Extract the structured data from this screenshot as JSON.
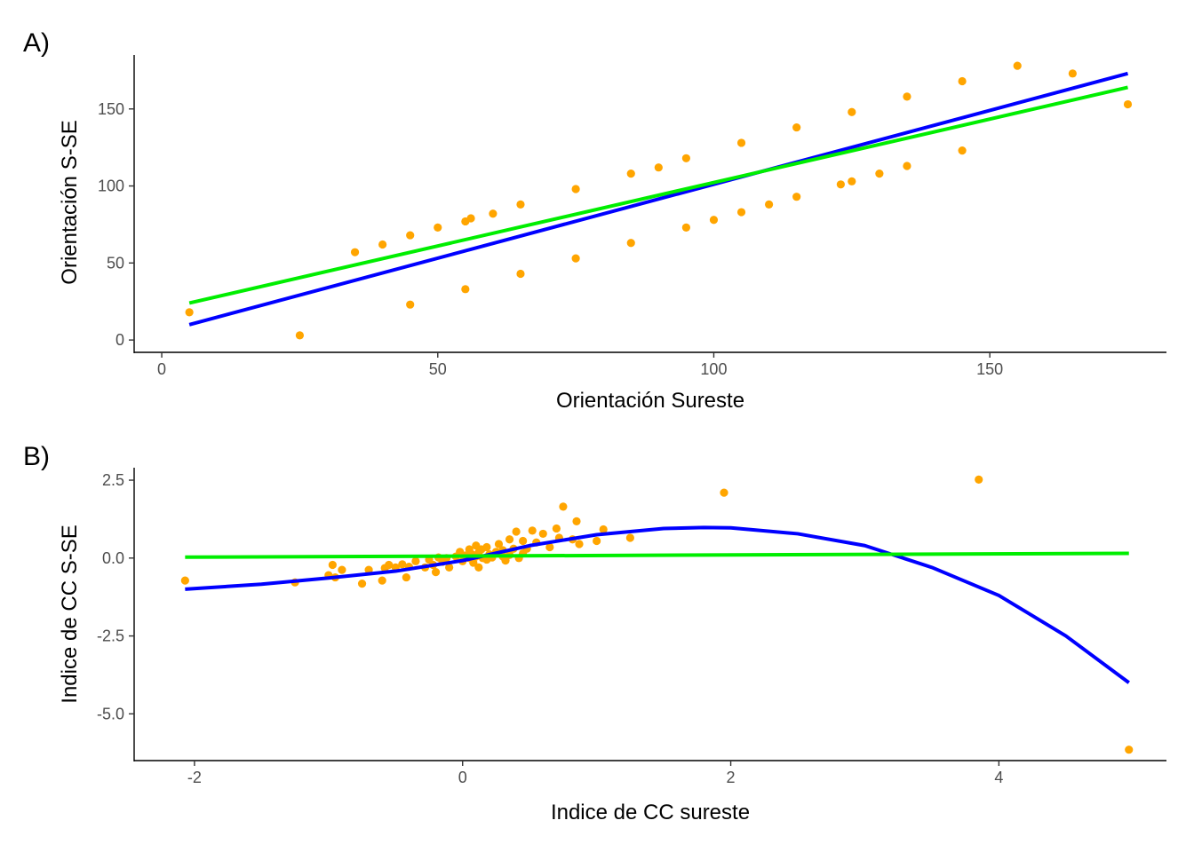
{
  "colors": {
    "points": "#FFA500",
    "fit_blue": "#0000FF",
    "fit_green": "#00EE00"
  },
  "chart_data": [
    {
      "type": "scatter",
      "panel_tag": "A)",
      "xlabel": "Orientación Sureste",
      "ylabel": "Orientación S-SE",
      "xlim": [
        -5,
        182
      ],
      "ylim": [
        -8,
        185
      ],
      "xticks": [
        0,
        50,
        100,
        150
      ],
      "yticks": [
        0,
        50,
        100,
        150
      ],
      "tick_labels_x": [
        "0",
        "50",
        "100",
        "150"
      ],
      "tick_labels_y": [
        "0",
        "50",
        "100",
        "150"
      ],
      "points": [
        [
          5,
          18
        ],
        [
          25,
          3
        ],
        [
          35,
          57
        ],
        [
          40,
          62
        ],
        [
          45,
          23
        ],
        [
          45,
          68
        ],
        [
          50,
          73
        ],
        [
          55,
          33
        ],
        [
          55,
          77
        ],
        [
          56,
          79
        ],
        [
          60,
          82
        ],
        [
          65,
          43
        ],
        [
          65,
          88
        ],
        [
          75,
          53
        ],
        [
          75,
          98
        ],
        [
          85,
          63
        ],
        [
          85,
          108
        ],
        [
          90,
          112
        ],
        [
          95,
          73
        ],
        [
          95,
          118
        ],
        [
          100,
          78
        ],
        [
          105,
          83
        ],
        [
          105,
          128
        ],
        [
          110,
          88
        ],
        [
          115,
          93
        ],
        [
          115,
          138
        ],
        [
          123,
          101
        ],
        [
          125,
          103
        ],
        [
          125,
          148
        ],
        [
          130,
          108
        ],
        [
          135,
          113
        ],
        [
          135,
          158
        ],
        [
          145,
          123
        ],
        [
          145,
          168
        ],
        [
          155,
          178
        ],
        [
          165,
          173
        ],
        [
          175,
          153
        ]
      ],
      "fits": [
        {
          "color": "blue",
          "x": [
            5,
            175
          ],
          "y": [
            10,
            173
          ]
        },
        {
          "color": "green",
          "x": [
            5,
            175
          ],
          "y": [
            24,
            164
          ]
        }
      ]
    },
    {
      "type": "scatter",
      "panel_tag": "B)",
      "xlabel": "Indice de CC sureste",
      "ylabel": "Indice de CC S-SE",
      "xlim": [
        -2.45,
        5.25
      ],
      "ylim": [
        -6.5,
        2.9
      ],
      "xticks": [
        -2,
        0,
        2,
        4
      ],
      "yticks": [
        2.5,
        0,
        -2.5,
        -5
      ],
      "tick_labels_x": [
        "-2",
        "0",
        "2",
        "4"
      ],
      "tick_labels_y": [
        "2.5",
        "0.0",
        "-2.5",
        "-5.0"
      ],
      "points": [
        [
          -2.07,
          -0.72
        ],
        [
          -1.25,
          -0.78
        ],
        [
          -1.0,
          -0.55
        ],
        [
          -0.97,
          -0.22
        ],
        [
          -0.95,
          -0.62
        ],
        [
          -0.9,
          -0.38
        ],
        [
          -0.75,
          -0.82
        ],
        [
          -0.7,
          -0.38
        ],
        [
          -0.6,
          -0.72
        ],
        [
          -0.58,
          -0.32
        ],
        [
          -0.55,
          -0.22
        ],
        [
          -0.5,
          -0.3
        ],
        [
          -0.45,
          -0.2
        ],
        [
          -0.42,
          -0.62
        ],
        [
          -0.4,
          -0.28
        ],
        [
          -0.35,
          -0.1
        ],
        [
          -0.28,
          -0.3
        ],
        [
          -0.25,
          -0.05
        ],
        [
          -0.22,
          -0.22
        ],
        [
          -0.2,
          -0.45
        ],
        [
          -0.18,
          0.02
        ],
        [
          -0.15,
          -0.12
        ],
        [
          -0.12,
          0.0
        ],
        [
          -0.1,
          -0.3
        ],
        [
          -0.05,
          0.05
        ],
        [
          -0.02,
          0.2
        ],
        [
          0.0,
          -0.1
        ],
        [
          0.02,
          0.08
        ],
        [
          0.05,
          0.0
        ],
        [
          0.05,
          0.28
        ],
        [
          0.07,
          0.12
        ],
        [
          0.08,
          -0.15
        ],
        [
          0.1,
          0.05
        ],
        [
          0.1,
          0.4
        ],
        [
          0.12,
          -0.3
        ],
        [
          0.12,
          0.18
        ],
        [
          0.14,
          0.28
        ],
        [
          0.15,
          0.0
        ],
        [
          0.18,
          0.35
        ],
        [
          0.18,
          -0.05
        ],
        [
          0.2,
          0.12
        ],
        [
          0.22,
          0.02
        ],
        [
          0.25,
          0.2
        ],
        [
          0.27,
          0.45
        ],
        [
          0.3,
          0.05
        ],
        [
          0.3,
          0.25
        ],
        [
          0.32,
          -0.08
        ],
        [
          0.35,
          0.6
        ],
        [
          0.35,
          0.1
        ],
        [
          0.38,
          0.3
        ],
        [
          0.4,
          0.85
        ],
        [
          0.42,
          0.0
        ],
        [
          0.45,
          0.15
        ],
        [
          0.45,
          0.55
        ],
        [
          0.48,
          0.3
        ],
        [
          0.52,
          0.88
        ],
        [
          0.55,
          0.5
        ],
        [
          0.6,
          0.78
        ],
        [
          0.65,
          0.35
        ],
        [
          0.7,
          0.95
        ],
        [
          0.72,
          0.65
        ],
        [
          0.75,
          1.65
        ],
        [
          0.82,
          0.6
        ],
        [
          0.85,
          1.18
        ],
        [
          0.87,
          0.45
        ],
        [
          1.0,
          0.55
        ],
        [
          1.05,
          0.92
        ],
        [
          1.25,
          0.65
        ],
        [
          1.95,
          2.1
        ],
        [
          3.85,
          2.52
        ],
        [
          4.97,
          -6.15
        ]
      ],
      "fits": [
        {
          "color": "blue",
          "x": [
            -2.07,
            -1.5,
            -1.0,
            -0.5,
            0.0,
            0.5,
            1.0,
            1.5,
            1.8,
            2.0,
            2.5,
            3.0,
            3.5,
            4.0,
            4.5,
            4.97
          ],
          "y": [
            -1.0,
            -0.84,
            -0.64,
            -0.42,
            -0.08,
            0.4,
            0.75,
            0.95,
            0.98,
            0.97,
            0.78,
            0.4,
            -0.3,
            -1.2,
            -2.5,
            -4.0
          ]
        },
        {
          "color": "green",
          "x": [
            -2.07,
            4.97
          ],
          "y": [
            0.03,
            0.15
          ]
        }
      ]
    }
  ]
}
